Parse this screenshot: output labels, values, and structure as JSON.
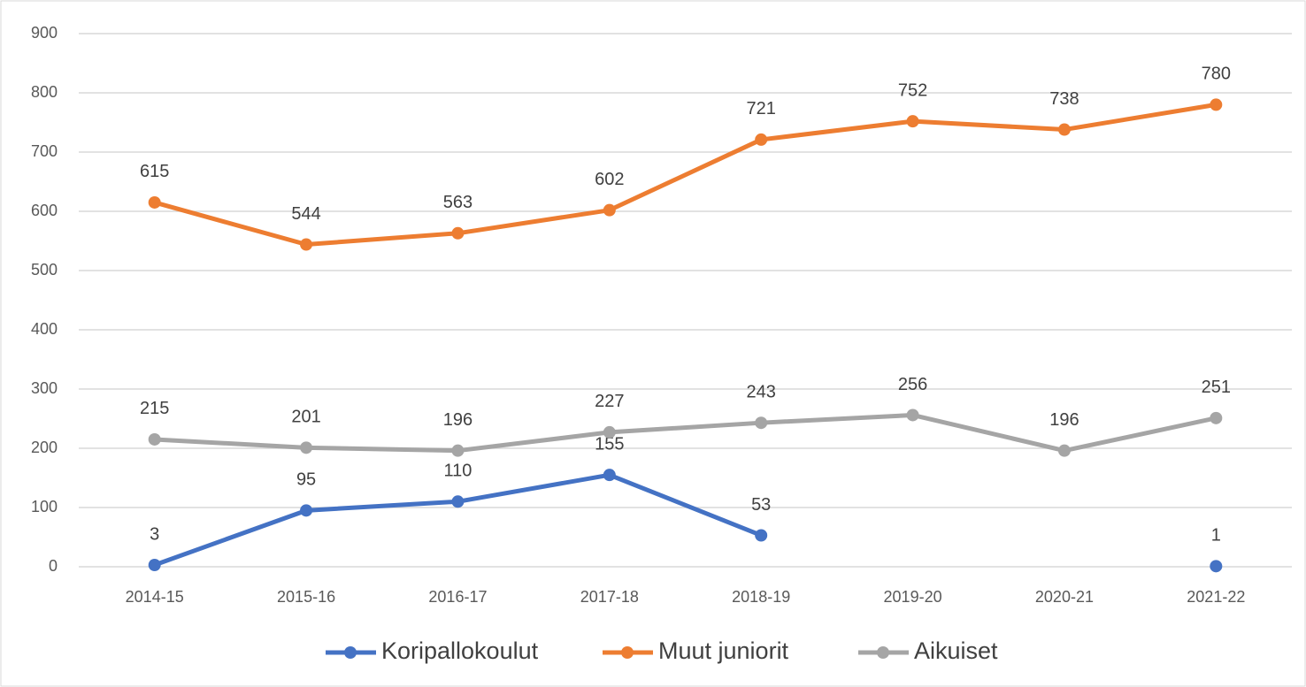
{
  "chart_data": {
    "type": "line",
    "categories": [
      "2014-15",
      "2015-16",
      "2016-17",
      "2017-18",
      "2018-19",
      "2019-20",
      "2020-21",
      "2021-22"
    ],
    "series": [
      {
        "name": "Koripallokoulut",
        "color": "#4472c4",
        "values": [
          3,
          95,
          110,
          155,
          53,
          null,
          null,
          1
        ]
      },
      {
        "name": "Muut juniorit",
        "color": "#ed7d31",
        "values": [
          615,
          544,
          563,
          602,
          721,
          752,
          738,
          780
        ]
      },
      {
        "name": "Aikuiset",
        "color": "#a5a5a5",
        "values": [
          215,
          201,
          196,
          227,
          243,
          256,
          196,
          251
        ]
      }
    ],
    "ylim": [
      0,
      900
    ],
    "yticks": [
      0,
      100,
      200,
      300,
      400,
      500,
      600,
      700,
      800,
      900
    ],
    "grid": true,
    "legend": "bottom"
  }
}
